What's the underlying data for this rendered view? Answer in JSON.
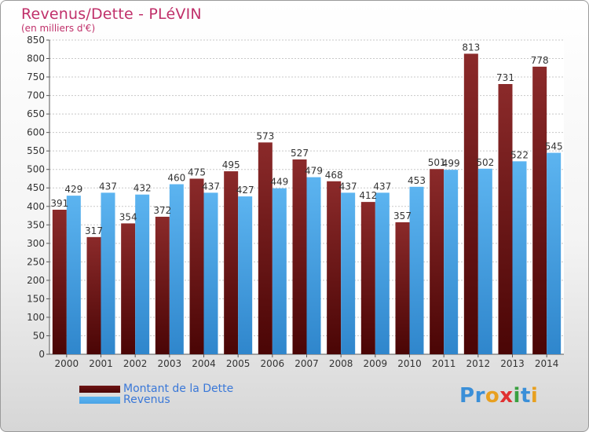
{
  "title": "Revenus/Dette - PLéVIN",
  "subtitle": "(en milliers d'€)",
  "colors": {
    "debt": "#6e1414",
    "revenue": "#4aa3e6",
    "title": "#c0306a",
    "legend_text": "#3a78d8"
  },
  "brand": {
    "letters": [
      "P",
      "r",
      "o",
      "x",
      "i",
      "t",
      "i"
    ],
    "colors": [
      "#3a8fd8",
      "#3a8fd8",
      "#e8a020",
      "#e03030",
      "#3aa040",
      "#3a8fd8",
      "#e8a020"
    ]
  },
  "chart_data": {
    "type": "bar",
    "categories": [
      "2000",
      "2001",
      "2002",
      "2003",
      "2004",
      "2005",
      "2006",
      "2007",
      "2008",
      "2009",
      "2010",
      "2011",
      "2012",
      "2013",
      "2014"
    ],
    "series": [
      {
        "name": "Montant de la Dette",
        "values": [
          391,
          317,
          354,
          372,
          475,
          495,
          573,
          527,
          468,
          412,
          357,
          501,
          813,
          731,
          778
        ],
        "labels": [
          "391",
          "317",
          "354",
          "372",
          "475",
          "495",
          "573",
          "527",
          "468",
          "412",
          "357",
          "501",
          "813",
          "731",
          "778"
        ]
      },
      {
        "name": "Revenus",
        "values": [
          429,
          437,
          432,
          460,
          437,
          427,
          449,
          479,
          437,
          437,
          453,
          499,
          502,
          522,
          545
        ],
        "labels": [
          "429",
          "437",
          "432",
          "460",
          "437",
          "427",
          "449",
          "479",
          "437",
          "437",
          "453",
          "499",
          "502",
          "522",
          "545"
        ]
      }
    ],
    "ylim": [
      0,
      850
    ],
    "yticks": [
      "0",
      "50",
      "100",
      "150",
      "200",
      "250",
      "300",
      "350",
      "400",
      "450",
      "500",
      "550",
      "600",
      "650",
      "700",
      "750",
      "800",
      "850"
    ],
    "grid": true,
    "legend_position": "bottom-left"
  }
}
